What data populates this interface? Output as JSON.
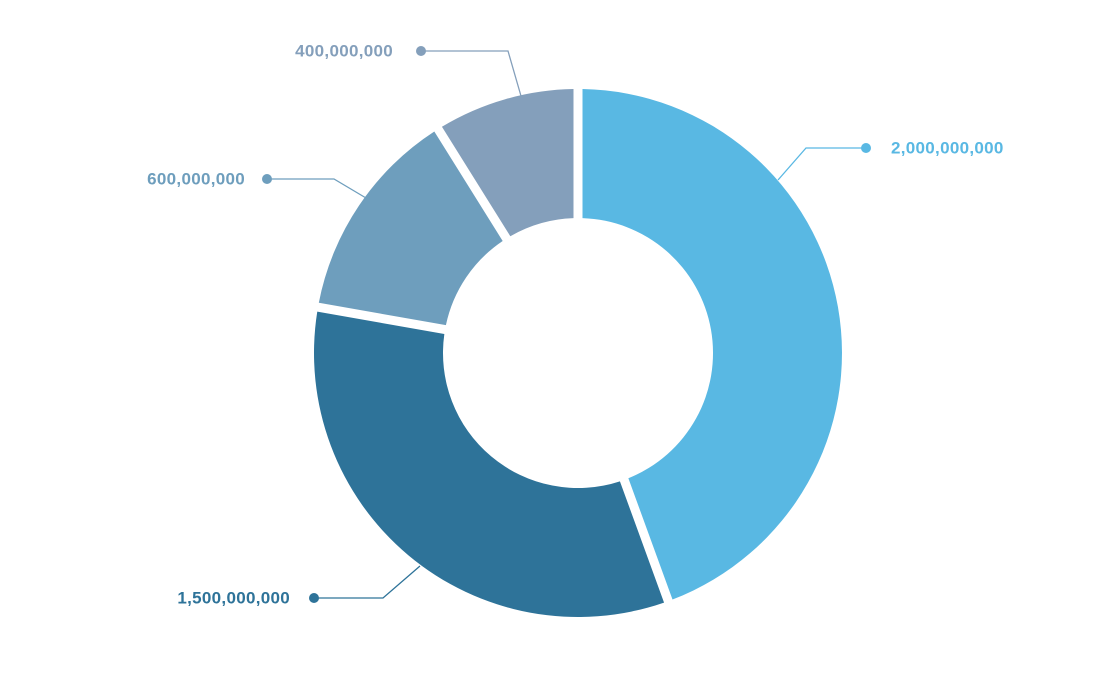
{
  "chart_data": {
    "type": "pie",
    "variant": "donut",
    "title": "",
    "legend": "none",
    "slices": [
      {
        "value": 2000000000,
        "label": "2,000,000,000",
        "color": "#59b8e3"
      },
      {
        "value": 1500000000,
        "label": "1,500,000,000",
        "color": "#2e7399"
      },
      {
        "value": 600000000,
        "label": "600,000,000",
        "color": "#6e9ebd"
      },
      {
        "value": 400000000,
        "label": "400,000,000",
        "color": "#849fbb"
      }
    ]
  }
}
